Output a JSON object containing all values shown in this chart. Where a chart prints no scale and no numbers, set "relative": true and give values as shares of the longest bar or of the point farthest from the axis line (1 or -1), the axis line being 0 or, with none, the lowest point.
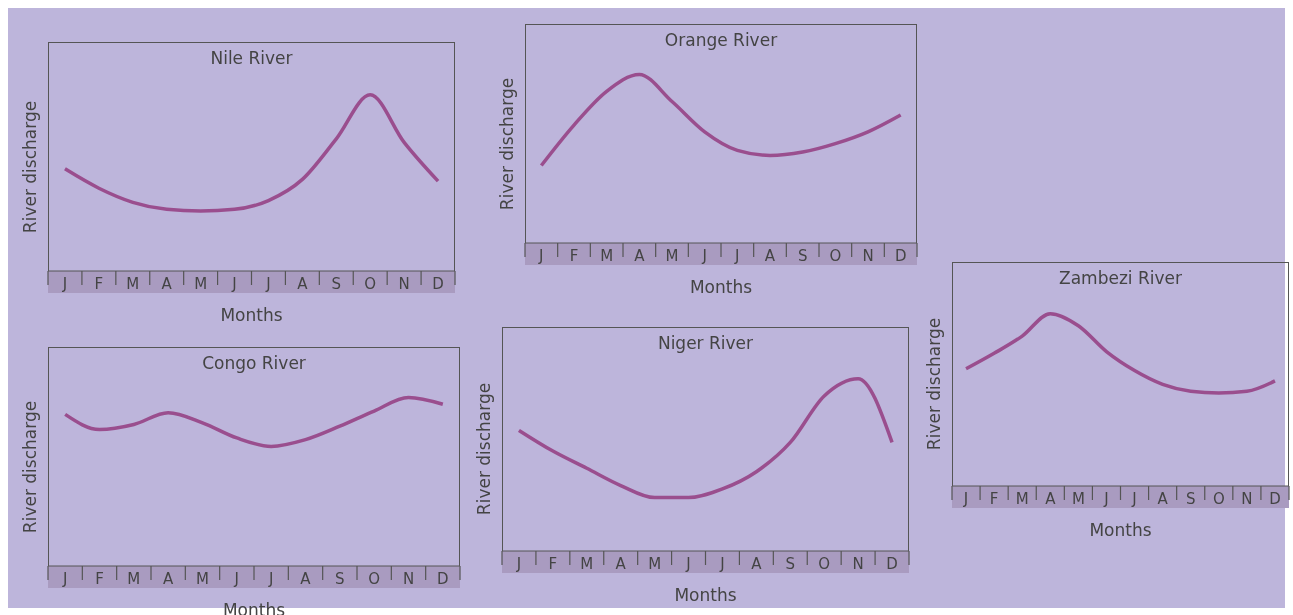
{
  "chart_data": [
    {
      "type": "line",
      "title": "Nile River",
      "xlabel": "Months",
      "ylabel": "River discharge",
      "relative": true,
      "color": "#9a4e8e",
      "legend": false,
      "marker": "none",
      "categories": [
        "J",
        "F",
        "M",
        "A",
        "M",
        "J",
        "J",
        "A",
        "S",
        "O",
        "N",
        "D"
      ],
      "values": [
        0.58,
        0.47,
        0.39,
        0.35,
        0.34,
        0.35,
        0.4,
        0.52,
        0.75,
        1,
        0.73,
        0.51
      ]
    },
    {
      "type": "line",
      "title": "Orange River",
      "xlabel": "Months",
      "ylabel": "River discharge",
      "relative": true,
      "color": "#9a4e8e",
      "legend": false,
      "marker": "none",
      "categories": [
        "J",
        "F",
        "M",
        "A",
        "M",
        "J",
        "J",
        "A",
        "S",
        "O",
        "N",
        "D"
      ],
      "values": [
        0.46,
        0.7,
        0.9,
        1,
        0.84,
        0.66,
        0.55,
        0.52,
        0.54,
        0.59,
        0.66,
        0.76
      ]
    },
    {
      "type": "line",
      "title": "Congo River",
      "xlabel": "Months",
      "ylabel": "River discharge",
      "relative": true,
      "color": "#9a4e8e",
      "legend": false,
      "marker": "none",
      "categories": [
        "J",
        "F",
        "M",
        "A",
        "M",
        "J",
        "J",
        "A",
        "S",
        "O",
        "N",
        "D"
      ],
      "values": [
        0.9,
        0.81,
        0.84,
        0.91,
        0.85,
        0.76,
        0.71,
        0.75,
        0.83,
        0.92,
        1,
        0.96
      ]
    },
    {
      "type": "line",
      "title": "Niger River",
      "xlabel": "Months",
      "ylabel": "River discharge",
      "relative": true,
      "color": "#9a4e8e",
      "legend": false,
      "marker": "none",
      "categories": [
        "J",
        "F",
        "M",
        "A",
        "M",
        "J",
        "J",
        "A",
        "S",
        "O",
        "N",
        "D"
      ],
      "values": [
        0.7,
        0.58,
        0.48,
        0.38,
        0.31,
        0.31,
        0.36,
        0.46,
        0.63,
        0.9,
        1,
        0.63
      ]
    },
    {
      "type": "line",
      "title": "Zambezi River",
      "xlabel": "Months",
      "ylabel": "River discharge",
      "relative": true,
      "color": "#9a4e8e",
      "legend": false,
      "marker": "none",
      "categories": [
        "J",
        "F",
        "M",
        "A",
        "M",
        "J",
        "J",
        "A",
        "S",
        "O",
        "N",
        "D"
      ],
      "values": [
        0.68,
        0.77,
        0.87,
        1,
        0.93,
        0.78,
        0.67,
        0.59,
        0.55,
        0.54,
        0.55,
        0.61
      ]
    }
  ]
}
